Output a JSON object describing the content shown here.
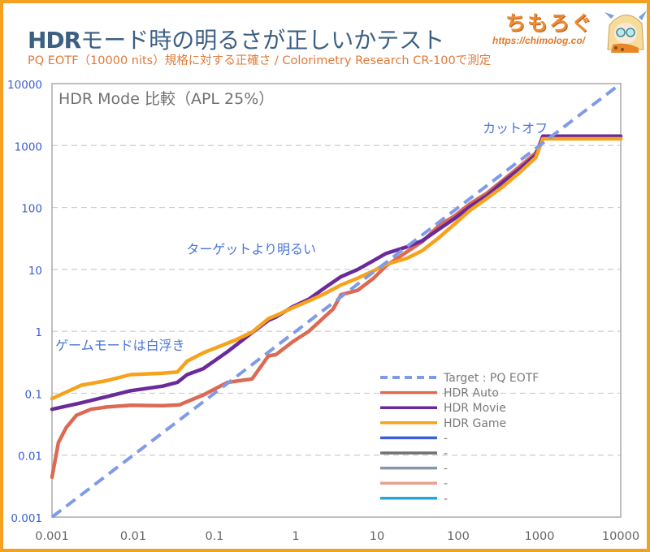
{
  "header": {
    "title_prefix": "HDR",
    "title_rest": "モード時の明るさが正しいかテスト",
    "subtitle": "PQ EOTF（10000 nits）規格に対する正確さ / Colorimetry Research CR-100で測定",
    "logo_text": "ちもろぐ",
    "logo_url": "https://chimolog.co/"
  },
  "colors": {
    "frame_border": "#f4a020",
    "title": "#3d5f82",
    "subtitle": "#e07a3a",
    "annotation": "#4a74d8",
    "y_tick": "#3a5fcf",
    "x_tick": "#666666",
    "grid": "#cccccc"
  },
  "chart_data": {
    "type": "line",
    "title": "HDR Mode 比較（APL 25%）",
    "xlabel": "",
    "ylabel": "",
    "xscale": "log",
    "yscale": "log",
    "xlim": [
      0.001,
      10000
    ],
    "ylim": [
      0.001,
      10000
    ],
    "x_ticks": [
      "0.001",
      "0.01",
      "0.1",
      "1",
      "10",
      "100",
      "1000",
      "10000"
    ],
    "y_ticks": [
      "0.001",
      "0.01",
      "0.1",
      "1",
      "10",
      "100",
      "1000",
      "10000"
    ],
    "grid": "horizontal-dashed",
    "legend_position": "bottom-right",
    "annotations": [
      {
        "text": "カットオフ",
        "x": 200,
        "y": 1600
      },
      {
        "text": "ターゲットより明るい",
        "x": 0.045,
        "y": 18
      },
      {
        "text": "ゲームモードは白浮き",
        "x": 0.0011,
        "y": 0.5
      }
    ],
    "series": [
      {
        "name": "Target : PQ EOTF",
        "color": "#7f9be8",
        "dashed": true,
        "x": [
          0.001,
          10000
        ],
        "y": [
          0.001,
          10000
        ]
      },
      {
        "name": "HDR Auto",
        "color": "#dc6a52",
        "dashed": false,
        "x": [
          0.001,
          0.0012,
          0.0015,
          0.002,
          0.003,
          0.0047,
          0.0093,
          0.023,
          0.037,
          0.073,
          0.145,
          0.29,
          0.46,
          0.57,
          0.92,
          1.45,
          2.9,
          3.6,
          5.8,
          9.1,
          12.8,
          23,
          36,
          57,
          90,
          140,
          225,
          360,
          560,
          900,
          1100,
          10000
        ],
        "y": [
          0.0044,
          0.016,
          0.028,
          0.044,
          0.055,
          0.06,
          0.064,
          0.063,
          0.065,
          0.094,
          0.15,
          0.17,
          0.4,
          0.42,
          0.68,
          1.0,
          2.3,
          3.9,
          4.6,
          7.2,
          11.3,
          19,
          28,
          50,
          73,
          115,
          170,
          280,
          450,
          760,
          1300,
          1300
        ]
      },
      {
        "name": "HDR Movie",
        "color": "#6a2a9a",
        "dashed": false,
        "x": [
          0.001,
          0.0023,
          0.0047,
          0.0093,
          0.023,
          0.035,
          0.046,
          0.073,
          0.145,
          0.29,
          0.46,
          0.57,
          0.92,
          1.45,
          2.3,
          3.6,
          5.8,
          9.1,
          12.8,
          23,
          36,
          57,
          90,
          140,
          225,
          360,
          560,
          900,
          1100,
          10000
        ],
        "y": [
          0.055,
          0.07,
          0.088,
          0.11,
          0.13,
          0.15,
          0.2,
          0.25,
          0.47,
          0.95,
          1.5,
          1.7,
          2.5,
          3.3,
          5.1,
          7.6,
          10,
          13.9,
          18,
          23,
          29,
          44,
          66,
          104,
          155,
          260,
          410,
          700,
          1420,
          1420
        ]
      },
      {
        "name": "HDR Game",
        "color": "#f6a21c",
        "dashed": false,
        "x": [
          0.001,
          0.0023,
          0.0047,
          0.0093,
          0.023,
          0.035,
          0.046,
          0.073,
          0.18,
          0.29,
          0.46,
          0.57,
          0.92,
          1.45,
          2.3,
          3.6,
          5.8,
          9.1,
          12.8,
          23,
          36,
          57,
          90,
          140,
          225,
          360,
          560,
          900,
          1100,
          10000
        ],
        "y": [
          0.082,
          0.135,
          0.16,
          0.2,
          0.21,
          0.22,
          0.33,
          0.45,
          0.72,
          0.97,
          1.6,
          1.8,
          2.4,
          3.1,
          4.1,
          5.6,
          7.2,
          9.5,
          12,
          15,
          20,
          32,
          54,
          90,
          140,
          220,
          360,
          640,
          1285,
          1285
        ]
      }
    ],
    "legend": [
      {
        "label": "Target : PQ EOTF",
        "color": "#7f9be8",
        "dashed": true
      },
      {
        "label": "HDR Auto",
        "color": "#dc6a52",
        "dashed": false
      },
      {
        "label": "HDR Movie",
        "color": "#6a2a9a",
        "dashed": false
      },
      {
        "label": "HDR Game",
        "color": "#f6a21c",
        "dashed": false
      },
      {
        "label": "-",
        "color": "#3a5fd8",
        "dashed": false
      },
      {
        "label": "-",
        "color": "#707070",
        "dashed": false
      },
      {
        "label": "-",
        "color": "#8496a8",
        "dashed": false
      },
      {
        "label": "-",
        "color": "#e8a090",
        "dashed": false
      },
      {
        "label": "-",
        "color": "#1fa8dc",
        "dashed": false
      }
    ]
  }
}
